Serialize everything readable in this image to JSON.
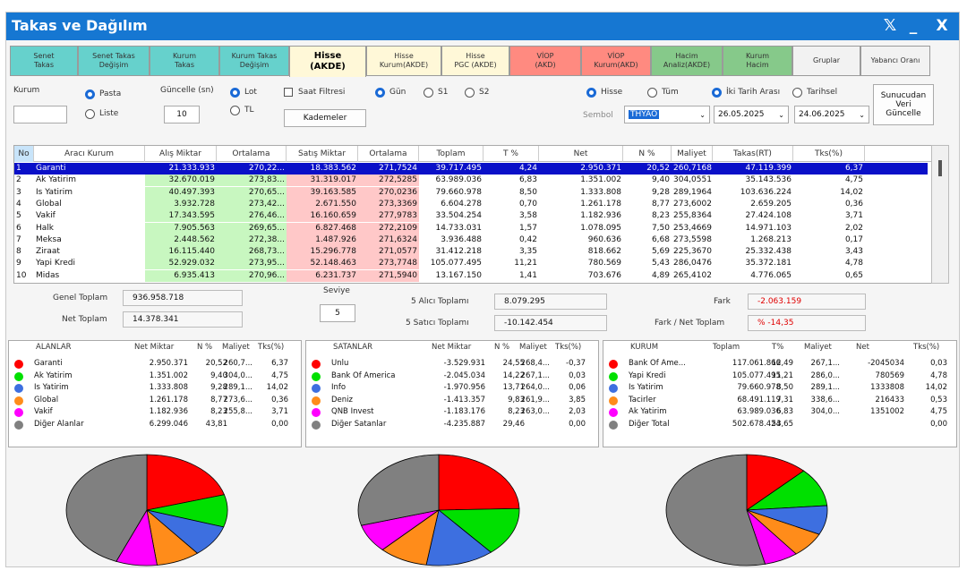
{
  "window": {
    "title": "Takas ve Dağılım",
    "close_label": "X",
    "minimize_label": "_",
    "x_logo": "𝕏"
  },
  "tabs": [
    {
      "label": "Senet\nTakas",
      "color": "#66d1cc"
    },
    {
      "label": "Senet Takas\nDeğişim",
      "color": "#66d1cc"
    },
    {
      "label": "Kurum\nTakas",
      "color": "#66d1cc"
    },
    {
      "label": "Kurum Takas\nDeğişim",
      "color": "#66d1cc"
    },
    {
      "label": "Hisse\n(AKDE)",
      "color": "#fff8d8"
    },
    {
      "label": "Hisse\nKurum(AKDE)",
      "color": "#fff8d8"
    },
    {
      "label": "Hisse\nPGC (AKDE)",
      "color": "#fff8d8"
    },
    {
      "label": "VİOP\n(AKD)",
      "color": "#ff8a80"
    },
    {
      "label": "VİOP\nKurum(AKD)",
      "color": "#ff8a80"
    },
    {
      "label": "Hacim\nAnaliz(AKDE)",
      "color": "#86c98a"
    },
    {
      "label": "Kurum\nHacim",
      "color": "#86c98a"
    },
    {
      "label": "Gruplar",
      "color": "#f2f2f2"
    },
    {
      "label": "Yabancı Oranı",
      "color": "#f2f2f2"
    }
  ],
  "controls": {
    "kurum_label": "Kurum",
    "kurum_value": "",
    "pasta": "Pasta",
    "liste": "Liste",
    "guncelle_label": "Güncelle (sn)",
    "guncelle_value": "10",
    "lot": "Lot",
    "tl": "TL",
    "saat_filtresi": "Saat Filtresi",
    "kademeler": "Kademeler",
    "gun": "Gün",
    "s1": "S1",
    "s2": "S2",
    "hisse": "Hisse",
    "tum": "Tüm",
    "sembol_label": "Sembol",
    "sembol_value": "THYAO",
    "iki_tarih": "İki Tarih Arası",
    "tarihsel": "Tarihsel",
    "date1": "26.05.2025",
    "date2": "24.06.2025",
    "sunucu": "Sunucudan\nVeri\nGüncelle"
  },
  "grid": {
    "headers": [
      "No",
      "Aracı Kurum",
      "Alış Miktar",
      "Ortalama",
      "Satış Miktar",
      "Ortalama",
      "Toplam",
      "T %",
      "Net",
      "N %",
      "Maliyet",
      "Takas(RT)",
      "Tks(%)"
    ],
    "rows": [
      [
        "1",
        "Garanti",
        "21.333.933",
        "270,22...",
        "18.383.562",
        "271,7524",
        "39.717.495",
        "4,24",
        "2.950.371",
        "20,52",
        "260,7168",
        "47.119.399",
        "6,37"
      ],
      [
        "2",
        "Ak Yatirim",
        "32.670.019",
        "273,83...",
        "31.319.017",
        "272,5285",
        "63.989.036",
        "6,83",
        "1.351.002",
        "9,40",
        "304,0551",
        "35.143.536",
        "4,75"
      ],
      [
        "3",
        "Is Yatirim",
        "40.497.393",
        "270,65...",
        "39.163.585",
        "270,0236",
        "79.660.978",
        "8,50",
        "1.333.808",
        "9,28",
        "289,1964",
        "103.636.224",
        "14,02"
      ],
      [
        "4",
        "Global",
        "3.932.728",
        "273,42...",
        "2.671.550",
        "273,3369",
        "6.604.278",
        "0,70",
        "1.261.178",
        "8,77",
        "273,6002",
        "2.659.205",
        "0,36"
      ],
      [
        "5",
        "Vakif",
        "17.343.595",
        "276,46...",
        "16.160.659",
        "277,9783",
        "33.504.254",
        "3,58",
        "1.182.936",
        "8,23",
        "255,8364",
        "27.424.108",
        "3,71"
      ],
      [
        "6",
        "Halk",
        "7.905.563",
        "269,65...",
        "6.827.468",
        "272,2109",
        "14.733.031",
        "1,57",
        "1.078.095",
        "7,50",
        "253,4669",
        "14.971.103",
        "2,02"
      ],
      [
        "7",
        "Meksa",
        "2.448.562",
        "272,38...",
        "1.487.926",
        "271,6324",
        "3.936.488",
        "0,42",
        "960.636",
        "6,68",
        "273,5598",
        "1.268.213",
        "0,17"
      ],
      [
        "8",
        "Ziraat",
        "16.115.440",
        "268,73...",
        "15.296.778",
        "271,0577",
        "31.412.218",
        "3,35",
        "818.662",
        "5,69",
        "225,3670",
        "25.332.438",
        "3,43"
      ],
      [
        "9",
        "Yapi Kredi",
        "52.929.032",
        "273,95...",
        "52.148.463",
        "273,7748",
        "105.077.495",
        "11,21",
        "780.569",
        "5,43",
        "286,0476",
        "35.372.181",
        "4,78"
      ],
      [
        "10",
        "Midas",
        "6.935.413",
        "270,96...",
        "6.231.737",
        "271,5940",
        "13.167.150",
        "1,41",
        "703.676",
        "4,89",
        "265,4102",
        "4.776.065",
        "0,65"
      ]
    ]
  },
  "summary": {
    "genel_label": "Genel Toplam",
    "genel_value": "936.958.718",
    "net_label": "Net Toplam",
    "net_value": "14.378.341",
    "seviye_label": "Seviye",
    "seviye_value": "5",
    "alici_label": "5 Alıcı Toplamı",
    "alici_value": "8.079.295",
    "satici_label": "5 Satıcı Toplamı",
    "satici_value": "-10.142.454",
    "fark_label": "Fark",
    "fark_value": "-2.063.159",
    "fark_net_label": "Fark / Net Toplam",
    "fark_net_value": "% -14,35"
  },
  "alanlar": {
    "headers": [
      "ALANLAR",
      "Net Miktar",
      "N %",
      "Maliyet",
      "Tks(%)"
    ],
    "rows": [
      {
        "name": "Garanti",
        "net": "2.950.371",
        "pct": "20,52",
        "cost": "260,7...",
        "tks": "6,37",
        "color": "#ff0000",
        "share": 20.52
      },
      {
        "name": "Ak Yatirim",
        "net": "1.351.002",
        "pct": "9,40",
        "cost": "304,0...",
        "tks": "4,75",
        "color": "#00e000",
        "share": 9.4
      },
      {
        "name": "Is Yatirim",
        "net": "1.333.808",
        "pct": "9,28",
        "cost": "289,1...",
        "tks": "14,02",
        "color": "#3d6fe0",
        "share": 9.28
      },
      {
        "name": "Global",
        "net": "1.261.178",
        "pct": "8,77",
        "cost": "273,6...",
        "tks": "0,36",
        "color": "#ff8c1a",
        "share": 8.77
      },
      {
        "name": "Vakif",
        "net": "1.182.936",
        "pct": "8,23",
        "cost": "255,8...",
        "tks": "3,71",
        "color": "#ff00ff",
        "share": 8.23
      },
      {
        "name": "Diğer Alanlar",
        "net": "6.299.046",
        "pct": "43,81",
        "cost": "",
        "tks": "0,00",
        "color": "#808080",
        "share": 43.81
      }
    ]
  },
  "satanlar": {
    "headers": [
      "SATANLAR",
      "Net Miktar",
      "N %",
      "Maliyet",
      "Tks(%)"
    ],
    "rows": [
      {
        "name": "Unlu",
        "net": "-3.529.931",
        "pct": "24,55",
        "cost": "268,4...",
        "tks": "-0,37",
        "color": "#ff0000",
        "share": 24.55
      },
      {
        "name": "Bank Of America",
        "net": "-2.045.034",
        "pct": "14,22",
        "cost": "267,1...",
        "tks": "0,03",
        "color": "#00e000",
        "share": 14.22
      },
      {
        "name": "Info",
        "net": "-1.970.956",
        "pct": "13,71",
        "cost": "264,0...",
        "tks": "0,06",
        "color": "#3d6fe0",
        "share": 13.71
      },
      {
        "name": "Deniz",
        "net": "-1.413.357",
        "pct": "9,83",
        "cost": "261,9...",
        "tks": "3,85",
        "color": "#ff8c1a",
        "share": 9.83
      },
      {
        "name": "QNB Invest",
        "net": "-1.183.176",
        "pct": "8,23",
        "cost": "263,0...",
        "tks": "2,03",
        "color": "#ff00ff",
        "share": 8.23
      },
      {
        "name": "Diğer Satanlar",
        "net": "-4.235.887",
        "pct": "29,46",
        "cost": "",
        "tks": "0,00",
        "color": "#808080",
        "share": 29.46
      }
    ]
  },
  "kurum": {
    "headers": [
      "KURUM",
      "Toplam",
      "T%",
      "Maliyet",
      "Net",
      "Tks(%)"
    ],
    "rows": [
      {
        "name": "Bank Of Ame...",
        "total": "117.061.866",
        "pct": "12,49",
        "cost": "267,1...",
        "net": "-2045034",
        "tks": "0,03",
        "color": "#ff0000",
        "share": 12.49
      },
      {
        "name": "Yapi Kredi",
        "total": "105.077.495",
        "pct": "11,21",
        "cost": "286,0...",
        "net": "780569",
        "tks": "4,78",
        "color": "#00e000",
        "share": 11.21
      },
      {
        "name": "Is Yatirim",
        "total": "79.660.978",
        "pct": "8,50",
        "cost": "289,1...",
        "net": "1333808",
        "tks": "14,02",
        "color": "#3d6fe0",
        "share": 8.5
      },
      {
        "name": "Tacirler",
        "total": "68.491.119",
        "pct": "7,31",
        "cost": "338,6...",
        "net": "216433",
        "tks": "0,53",
        "color": "#ff8c1a",
        "share": 7.31
      },
      {
        "name": "Ak Yatirim",
        "total": "63.989.036",
        "pct": "6,83",
        "cost": "304,0...",
        "net": "1351002",
        "tks": "4,75",
        "color": "#ff00ff",
        "share": 6.83
      },
      {
        "name": "Diğer Total",
        "total": "502.678.424",
        "pct": "53,65",
        "cost": "",
        "net": "",
        "tks": "0,00",
        "color": "#808080",
        "share": 53.65
      }
    ]
  }
}
